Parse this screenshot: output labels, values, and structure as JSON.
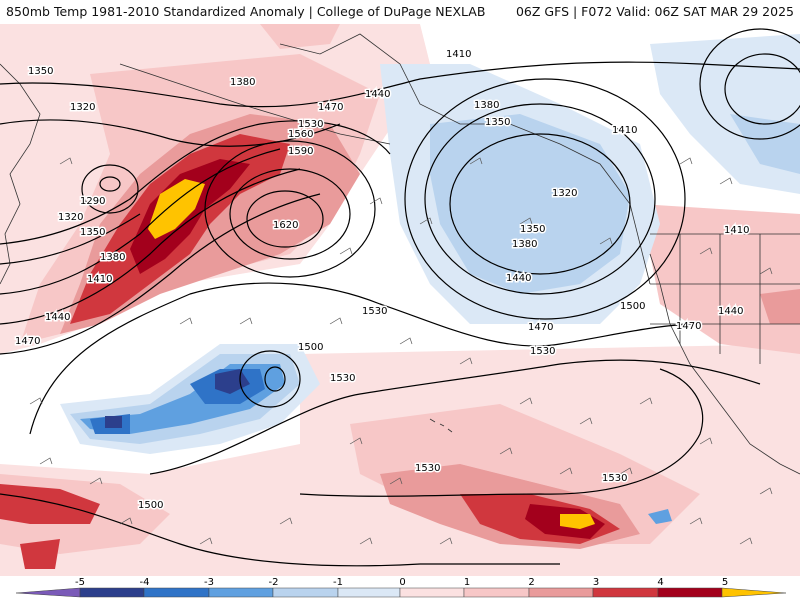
{
  "header": {
    "left": "850mb Temp 1981-2010 Standardized Anomaly | College of DuPage NEXLAB",
    "right": "06Z GFS | F072 Valid: 06Z SAT MAR 29 2025"
  },
  "colors": {
    "neg5": "#7a5ab8",
    "neg4": "#2c3f8c",
    "neg3": "#2f73c7",
    "neg2": "#5fa0e0",
    "neg1": "#b9d3ee",
    "neg05": "#dbe8f6",
    "pos05": "#fbe1e1",
    "pos1": "#f7c7c7",
    "pos2": "#e99b9b",
    "pos3": "#d0373e",
    "pos4": "#a3001c",
    "pos5": "#ffc300"
  },
  "colorbar": {
    "labels": [
      "-5",
      "-4",
      "-3",
      "-2",
      "-1",
      "0",
      "1",
      "2",
      "3",
      "4",
      "5"
    ]
  },
  "contours": {
    "l1350a": "1350",
    "l1320a": "1320",
    "l1290": "1290",
    "l1320b": "1320",
    "l1350b": "1350",
    "l1380a": "1380",
    "l1410a": "1410",
    "l1440a": "1440",
    "l1470a": "1470",
    "l1380b": "1380",
    "l1440b": "1440",
    "l1470b": "1470",
    "l1530a": "1530",
    "l1560": "1560",
    "l1590": "1590",
    "l1620": "1620",
    "l1410b": "1410",
    "l1380c": "1380",
    "l1350c": "1350",
    "l1410c": "1410",
    "l1320c": "1320",
    "l1350d": "1350",
    "l1380d": "1380",
    "l1440c": "1440",
    "l1470c": "1470",
    "l1500a": "1500",
    "l1470d": "1470",
    "l1440d": "1440",
    "l1410d": "1410",
    "l1530b": "1530",
    "l1530c": "1530",
    "l1500b": "1500",
    "l1530d": "1530",
    "l1530e": "1530",
    "l1530f": "1530",
    "l1500c": "1500"
  }
}
